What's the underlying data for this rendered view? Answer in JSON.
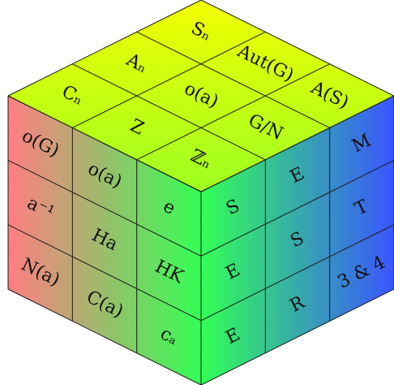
{
  "cube": {
    "colors": {
      "top_far": "#f2ff00",
      "top_near": "#9dff22",
      "left_edge": "#ff7d82",
      "middle_edge": "#33ff55",
      "right_edge": "#3a55ff",
      "lines": "#1a1a1a"
    },
    "top": [
      [
        "S_n",
        "Aut(G)",
        "A(S)"
      ],
      [
        "A_n",
        "o(a)",
        "G/N"
      ],
      [
        "C_n",
        "Z",
        "Z_n"
      ]
    ],
    "top_display": {
      "S_n": "Sₙ",
      "A_n": "Aₙ",
      "C_n": "Cₙ",
      "Z_n": "ℤₙ"
    },
    "left": [
      [
        "o(G)",
        "o(a)",
        "e"
      ],
      [
        "a⁻¹",
        "Ha",
        "HK"
      ],
      [
        "N(a)",
        "C(a)",
        "cₐ"
      ]
    ],
    "right": [
      [
        "S",
        "E",
        "M"
      ],
      [
        "E",
        "S",
        "T"
      ],
      [
        "E",
        "R",
        "3 & 4"
      ]
    ]
  }
}
